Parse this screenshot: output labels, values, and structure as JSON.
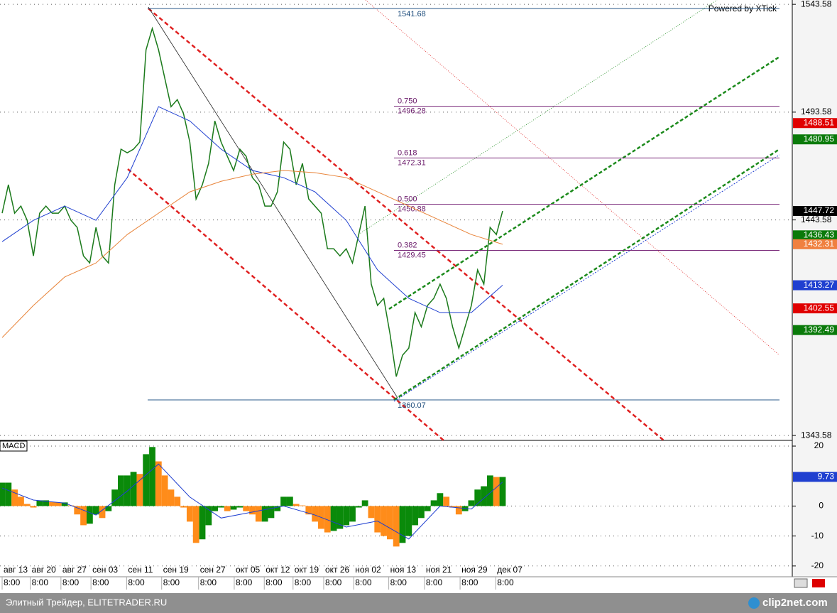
{
  "watermark": "Powered by XTick",
  "chart_data": [
    {
      "type": "line",
      "x": [
        0,
        1,
        2,
        3,
        4,
        5,
        6,
        7,
        8,
        9,
        10,
        11,
        12,
        13,
        14,
        15,
        16,
        17,
        18,
        19,
        20,
        21,
        22,
        23,
        24,
        25,
        26,
        27,
        28,
        29,
        30,
        31,
        32,
        33,
        34,
        35,
        36,
        37,
        38,
        39,
        40,
        41,
        42,
        43,
        44,
        45,
        46,
        47,
        48,
        49,
        50,
        51,
        52,
        53,
        54,
        55,
        56,
        57,
        58,
        59,
        60,
        61,
        62,
        63,
        64,
        65,
        66,
        67,
        68,
        69,
        70,
        71,
        72,
        73,
        74,
        75,
        76,
        77,
        78,
        79,
        80
      ],
      "series": [
        {
          "color": "#1b7a1b",
          "values": [
            1446.7,
            1459.9,
            1446.7,
            1450.0,
            1443.4,
            1426.9,
            1446.7,
            1450.0,
            1446.7,
            1446.7,
            1450.0,
            1443.4,
            1440.1,
            1426.9,
            1423.6,
            1440.1,
            1426.9,
            1423.6,
            1459.9,
            1476.4,
            1474.7,
            1476.4,
            1479.7,
            1522.5,
            1532.4,
            1522.5,
            1509.3,
            1496.1,
            1499.4,
            1492.8,
            1479.7,
            1453.3,
            1459.9,
            1469.8,
            1489.5,
            1479.7,
            1473.1,
            1466.5,
            1476.4,
            1473.1,
            1463.2,
            1459.9,
            1450.0,
            1450.0,
            1456.6,
            1479.7,
            1476.4,
            1459.9,
            1469.8,
            1453.3,
            1450.0,
            1446.7,
            1430.2,
            1430.2,
            1426.9,
            1430.2,
            1423.6,
            1436.8,
            1450.0,
            1413.8,
            1403.9,
            1407.2,
            1390.7,
            1370.9,
            1380.8,
            1384.1,
            1400.6,
            1394.0,
            1403.9,
            1407.2,
            1413.8,
            1407.2,
            1394.0,
            1384.1,
            1394.0,
            1403.9,
            1420.4,
            1413.8,
            1440.1,
            1436.8,
            1447.7
          ]
        },
        {
          "color": "#1f3fd0",
          "x": [
            0,
            5,
            10,
            15,
            20,
            25,
            30,
            35,
            40,
            45,
            50,
            55,
            60,
            65,
            70,
            75,
            80
          ],
          "values": [
            1433.5,
            1443.4,
            1450.0,
            1443.4,
            1463.2,
            1496.1,
            1489.5,
            1476.4,
            1466.5,
            1463.2,
            1456.6,
            1443.4,
            1420.4,
            1407.2,
            1400.6,
            1400.6,
            1413.3
          ]
        },
        {
          "color": "#e8843a",
          "x": [
            0,
            5,
            10,
            15,
            20,
            25,
            30,
            35,
            40,
            45,
            50,
            55,
            60,
            65,
            70,
            75,
            80
          ],
          "values": [
            1389.0,
            1403.9,
            1417.1,
            1423.6,
            1436.8,
            1446.7,
            1456.6,
            1461.5,
            1464.8,
            1466.5,
            1465.5,
            1463.2,
            1456.6,
            1450.0,
            1443.4,
            1436.8,
            1432.3
          ]
        }
      ],
      "xlim": [
        0,
        80
      ],
      "ylim": [
        1341.3,
        1545.6
      ],
      "yticks": [
        1543.58,
        1493.58,
        1443.58,
        1343.58
      ],
      "xticks": [
        {
          "value": 0,
          "label": "авг 13"
        },
        {
          "value": 4.5,
          "label": "авг 20"
        },
        {
          "value": 9.4,
          "label": "авг 27"
        },
        {
          "value": 14.2,
          "label": "сен 03"
        },
        {
          "value": 19.9,
          "label": "сен 11"
        },
        {
          "value": 25.5,
          "label": "сен 19"
        },
        {
          "value": 31.4,
          "label": "сен 27"
        },
        {
          "value": 37.1,
          "label": "окт 05"
        },
        {
          "value": 41.9,
          "label": "окт 12"
        },
        {
          "value": 46.5,
          "label": "окт 19"
        },
        {
          "value": 51.4,
          "label": "окт 26"
        },
        {
          "value": 56.2,
          "label": "ноя 02"
        },
        {
          "value": 61.8,
          "label": "ноя 13"
        },
        {
          "value": 67.5,
          "label": "ноя 21"
        },
        {
          "value": 73.2,
          "label": "ноя 29"
        },
        {
          "value": 78.9,
          "label": "дек 07"
        }
      ],
      "xtick_times": [
        "8:00",
        "8:00",
        "8:00",
        "8:00",
        "8:00",
        "8:00",
        "8:00",
        "8:00",
        "8:00",
        "8:00",
        "8:00",
        "8:00",
        "8:00",
        "8:00",
        "8:00",
        "8:00"
      ],
      "grid": true,
      "fib_levels": [
        {
          "value": 1541.68
        },
        {
          "level": "0.750",
          "value": 1496.28
        },
        {
          "level": "0.618",
          "value": 1472.31
        },
        {
          "level": "0.500",
          "value": 1450.88
        },
        {
          "level": "0.382",
          "value": 1429.45
        },
        {
          "value": 1360.07
        }
      ],
      "price_labels": [
        {
          "value": 1488.51,
          "color": "#e00000"
        },
        {
          "value": 1480.95,
          "color": "#0a7a0a"
        },
        {
          "value": 1447.72,
          "color": "#000000"
        },
        {
          "value": 1436.43,
          "color": "#0a7a0a"
        },
        {
          "value": 1432.31,
          "color": "#f08040"
        },
        {
          "value": 1413.27,
          "color": "#1f3fd0"
        },
        {
          "value": 1402.55,
          "color": "#e00000"
        },
        {
          "value": 1392.49,
          "color": "#0a7a0a"
        }
      ]
    },
    {
      "type": "bar",
      "name": "MACD",
      "x": [
        0,
        1,
        2,
        3,
        4,
        5,
        6,
        7,
        8,
        9,
        10,
        11,
        12,
        13,
        14,
        15,
        16,
        17,
        18,
        19,
        20,
        21,
        22,
        23,
        24,
        25,
        26,
        27,
        28,
        29,
        30,
        31,
        32,
        33,
        34,
        35,
        36,
        37,
        38,
        39,
        40,
        41,
        42,
        43,
        44,
        45,
        46,
        47,
        48,
        49,
        50,
        51,
        52,
        53,
        54,
        55,
        56,
        57,
        58,
        59,
        60,
        61,
        62,
        63,
        64,
        65,
        66,
        67,
        68,
        69,
        70,
        71,
        72,
        73,
        74,
        75,
        76,
        77,
        78,
        79,
        80
      ],
      "values": [
        7.8,
        7.8,
        5.5,
        3.1,
        0.7,
        -0.5,
        1.9,
        1.9,
        1.4,
        1.2,
        1.2,
        0.2,
        -2.8,
        -6.4,
        -5.9,
        -2.8,
        -4.0,
        -1.7,
        5.5,
        10.2,
        10.2,
        11.4,
        10.7,
        17.3,
        19.7,
        14.9,
        10.2,
        5.5,
        3.1,
        -0.5,
        -5.2,
        -12.3,
        -11.1,
        -6.4,
        -1.7,
        -0.5,
        -1.7,
        -1.2,
        -0.5,
        -1.7,
        -2.8,
        -5.2,
        -5.2,
        -4.0,
        -1.7,
        3.1,
        3.1,
        0.7,
        0.2,
        -2.8,
        -5.2,
        -7.6,
        -8.8,
        -8.3,
        -7.6,
        -6.4,
        -5.2,
        -0.5,
        1.9,
        -4.0,
        -8.8,
        -10.0,
        -11.1,
        -13.5,
        -12.3,
        -10.0,
        -6.4,
        -4.0,
        -1.7,
        1.9,
        4.3,
        3.1,
        -0.5,
        -2.8,
        -1.7,
        1.9,
        5.5,
        6.6,
        10.2,
        9.7,
        9.7
      ],
      "colors": {
        "up": "#0a8a0a",
        "down": "#ff8c1a"
      },
      "signal": {
        "color": "#1f3fd0",
        "x": [
          0,
          5,
          10,
          15,
          20,
          25,
          30,
          35,
          40,
          45,
          50,
          55,
          60,
          65,
          70,
          75,
          80
        ],
        "values": [
          6,
          2,
          1,
          -3,
          5,
          14,
          3,
          -4,
          -2,
          0,
          -3,
          -7,
          -5,
          -11,
          0,
          -1,
          8
        ]
      },
      "xlim": [
        0,
        80
      ],
      "ylim": [
        -23.6,
        21.9
      ],
      "yticks": [
        20,
        0,
        -10,
        -20
      ],
      "value_label": {
        "value": 9.73,
        "color": "#1f3fd0"
      }
    }
  ],
  "footer": {
    "text": "Элитный Трейдер, ELITETRADER.RU",
    "logo": "clip2net.com"
  }
}
